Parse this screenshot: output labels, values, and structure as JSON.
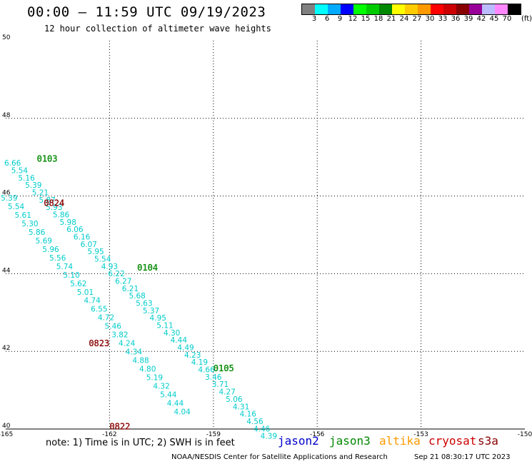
{
  "header": {
    "title": "00:00 — 11:59 UTC 09/19/2023",
    "subtitle": "12 hour collection of altimeter wave heights"
  },
  "colorbar": {
    "unit": "(ft)",
    "colors": [
      "#808080",
      "#00ffff",
      "#00aaff",
      "#0000ff",
      "#00ff00",
      "#00cc00",
      "#008800",
      "#ffff00",
      "#ffcc00",
      "#ff9900",
      "#ff0000",
      "#cc0000",
      "#880000",
      "#990099",
      "#bbbbff",
      "#ff88ff",
      "#000000"
    ],
    "labels": [
      "3",
      "6",
      "9",
      "12",
      "15",
      "18",
      "21",
      "24",
      "27",
      "30",
      "33",
      "36",
      "39",
      "42",
      "45",
      "70"
    ]
  },
  "note": "note: 1) Time is in UTC; 2) SWH is in feet",
  "legend": [
    {
      "name": "jason2",
      "color": "#0000cc"
    },
    {
      "name": "jason3",
      "color": "#008800"
    },
    {
      "name": "altika",
      "color": "#ff9900"
    },
    {
      "name": "cryosat",
      "color": "#cc0000"
    },
    {
      "name": "s3a",
      "color": "#880000"
    }
  ],
  "footer": {
    "left": "NOAA/NESDIS Center for Satellite Applications and Research",
    "right": "Sep 21 08:30:17 UTC 2023"
  },
  "chart_data": {
    "type": "scatter",
    "xlim": [
      -165,
      -150
    ],
    "ylim": [
      40,
      50
    ],
    "xticks": [
      "-165",
      "-162",
      "-159",
      "-156",
      "-153",
      "-150"
    ],
    "yticks": [
      "40",
      "42",
      "44",
      "46",
      "48",
      "50"
    ],
    "grid": true,
    "tracks": [
      {
        "time": "0103",
        "time_color": "#008800",
        "color": "#00cccc",
        "pos": [
          -162.2,
          46.25
        ],
        "points": [
          {
            "lon": -164.8,
            "lat": 46.78,
            "v": "6.66"
          },
          {
            "lon": -164.6,
            "lat": 46.59,
            "v": "5.54"
          },
          {
            "lon": -164.4,
            "lat": 46.4,
            "v": "5.16"
          },
          {
            "lon": -164.2,
            "lat": 46.21,
            "v": "5.39"
          },
          {
            "lon": -164.0,
            "lat": 46.02,
            "v": "5.21"
          },
          {
            "lon": -163.8,
            "lat": 45.83,
            "v": "5.87"
          },
          {
            "lon": -163.6,
            "lat": 45.64,
            "v": "5.93"
          },
          {
            "lon": -163.4,
            "lat": 45.45,
            "v": "5.86"
          },
          {
            "lon": -163.2,
            "lat": 45.26,
            "v": "5.98"
          },
          {
            "lon": -163.0,
            "lat": 45.07,
            "v": "6.06"
          },
          {
            "lon": -162.8,
            "lat": 44.88,
            "v": "6.16"
          },
          {
            "lon": -162.6,
            "lat": 44.69,
            "v": "6.07"
          },
          {
            "lon": -162.4,
            "lat": 44.5,
            "v": "5.95"
          },
          {
            "lon": -162.2,
            "lat": 44.31,
            "v": "5.54"
          },
          {
            "lon": -162.0,
            "lat": 44.12,
            "v": "4.93"
          },
          {
            "lon": -161.8,
            "lat": 43.93,
            "v": "6.22"
          },
          {
            "lon": -161.6,
            "lat": 43.74,
            "v": "6.27"
          },
          {
            "lon": -161.4,
            "lat": 43.55,
            "v": "6.21"
          },
          {
            "lon": -161.2,
            "lat": 43.36,
            "v": "5.68"
          },
          {
            "lon": -161.0,
            "lat": 43.17,
            "v": "5.63"
          },
          {
            "lon": -160.8,
            "lat": 42.98,
            "v": "5.37"
          },
          {
            "lon": -160.6,
            "lat": 42.79,
            "v": "4.95"
          },
          {
            "lon": -160.4,
            "lat": 42.6,
            "v": "5.11"
          },
          {
            "lon": -160.2,
            "lat": 42.41,
            "v": "4.30"
          },
          {
            "lon": -160.0,
            "lat": 42.22,
            "v": "4.44"
          },
          {
            "lon": -159.8,
            "lat": 42.03,
            "v": "4.49"
          },
          {
            "lon": -159.6,
            "lat": 41.84,
            "v": "4.23"
          },
          {
            "lon": -159.4,
            "lat": 41.65,
            "v": "4.19"
          },
          {
            "lon": -159.2,
            "lat": 41.46,
            "v": "4.66"
          },
          {
            "lon": -159.0,
            "lat": 41.27,
            "v": "3.46"
          },
          {
            "lon": -158.8,
            "lat": 41.08,
            "v": "3.71"
          },
          {
            "lon": -158.6,
            "lat": 40.89,
            "v": "4.27"
          },
          {
            "lon": -158.4,
            "lat": 40.7,
            "v": "5.06"
          },
          {
            "lon": -158.2,
            "lat": 40.51,
            "v": "4.31"
          },
          {
            "lon": -158.0,
            "lat": 40.32,
            "v": "4.16"
          },
          {
            "lon": -157.8,
            "lat": 40.13,
            "v": "4.56"
          },
          {
            "lon": -157.6,
            "lat": 39.94,
            "v": "4.46"
          },
          {
            "lon": -157.4,
            "lat": 39.75,
            "v": "4.39"
          }
        ]
      },
      {
        "time": "0824",
        "time_color": "#880000",
        "color": "#00cccc",
        "pos": [
          -164.0,
          45.7
        ],
        "points": [
          {
            "lon": -164.9,
            "lat": 45.88,
            "v": "5.39"
          },
          {
            "lon": -164.7,
            "lat": 45.66,
            "v": "5.54"
          },
          {
            "lon": -164.5,
            "lat": 45.44,
            "v": "5.61"
          },
          {
            "lon": -164.3,
            "lat": 45.22,
            "v": "5.30"
          },
          {
            "lon": -164.1,
            "lat": 45.0,
            "v": "5.86"
          },
          {
            "lon": -163.9,
            "lat": 44.78,
            "v": "5.69"
          },
          {
            "lon": -163.7,
            "lat": 44.56,
            "v": "5.96"
          },
          {
            "lon": -163.5,
            "lat": 44.34,
            "v": "5.56"
          },
          {
            "lon": -163.3,
            "lat": 44.12,
            "v": "5.74"
          },
          {
            "lon": -163.1,
            "lat": 43.9,
            "v": "5.10"
          },
          {
            "lon": -162.9,
            "lat": 43.68,
            "v": "5.62"
          },
          {
            "lon": -162.7,
            "lat": 43.46,
            "v": "5.01"
          },
          {
            "lon": -162.5,
            "lat": 43.24,
            "v": "4.74"
          },
          {
            "lon": -162.3,
            "lat": 43.02,
            "v": "6.55"
          },
          {
            "lon": -162.1,
            "lat": 42.8,
            "v": "4.72"
          },
          {
            "lon": -161.9,
            "lat": 42.58,
            "v": "5.46"
          },
          {
            "lon": -161.7,
            "lat": 42.36,
            "v": "3.82"
          },
          {
            "lon": -161.5,
            "lat": 42.14,
            "v": "4.24"
          },
          {
            "lon": -161.3,
            "lat": 41.92,
            "v": "4.34"
          },
          {
            "lon": -161.1,
            "lat": 41.7,
            "v": "4.88"
          },
          {
            "lon": -160.9,
            "lat": 41.48,
            "v": "4.80"
          },
          {
            "lon": -160.7,
            "lat": 41.26,
            "v": "5.19"
          },
          {
            "lon": -160.5,
            "lat": 41.04,
            "v": "4.32"
          },
          {
            "lon": -160.3,
            "lat": 40.82,
            "v": "5.44"
          },
          {
            "lon": -160.1,
            "lat": 40.6,
            "v": "4.44"
          },
          {
            "lon": -159.9,
            "lat": 40.38,
            "v": "4.04"
          }
        ]
      }
    ],
    "time_labels": [
      {
        "text": "0103",
        "lon": -164.1,
        "lat": 46.88,
        "color": "#008800"
      },
      {
        "text": "0824",
        "lon": -163.9,
        "lat": 45.74,
        "color": "#880000"
      },
      {
        "text": "0104",
        "lon": -161.2,
        "lat": 44.08,
        "color": "#008800"
      },
      {
        "text": "0823",
        "lon": -162.6,
        "lat": 42.13,
        "color": "#880000"
      },
      {
        "text": "0105",
        "lon": -159.0,
        "lat": 41.49,
        "color": "#008800"
      },
      {
        "text": "0822",
        "lon": -162.0,
        "lat": 39.99,
        "color": "#880000"
      }
    ]
  }
}
